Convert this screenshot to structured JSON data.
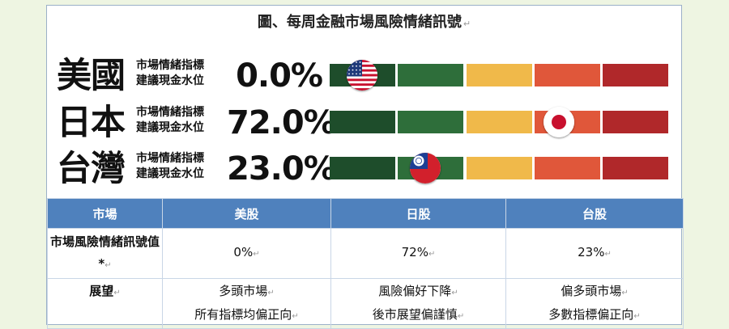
{
  "title": "圖、每周金融市場風險情緒訊號",
  "sub_line1": "市場情緒指標",
  "sub_line2": "建議現金水位",
  "indicator_levels": 5,
  "segment_colors": [
    "#1e4d2b",
    "#2e6e3a",
    "#f0b94a",
    "#e0573a",
    "#b0282a"
  ],
  "rows": [
    {
      "country": "美國",
      "percent": "0.0%",
      "flag": "us-flag-icon",
      "level_fraction": 0.0
    },
    {
      "country": "日本",
      "percent": "72.0%",
      "flag": "jp-flag-icon",
      "level_fraction": 0.72
    },
    {
      "country": "台灣",
      "percent": "23.0%",
      "flag": "tw-flag-icon",
      "level_fraction": 0.23
    }
  ],
  "table": {
    "headers": [
      "市場",
      "美股",
      "日股",
      "台股"
    ],
    "signal_label": "市場風險情緒訊號值*",
    "signal_values": [
      "0%",
      "72%",
      "23%"
    ],
    "outlook_label": "展望",
    "outlook": [
      [
        "多頭市場",
        "所有指標均偏正向"
      ],
      [
        "風險偏好下降",
        "後市展望偏謹慎"
      ],
      [
        "偏多頭市場",
        "多數指標偏正向"
      ]
    ]
  },
  "return_mark": "↵"
}
